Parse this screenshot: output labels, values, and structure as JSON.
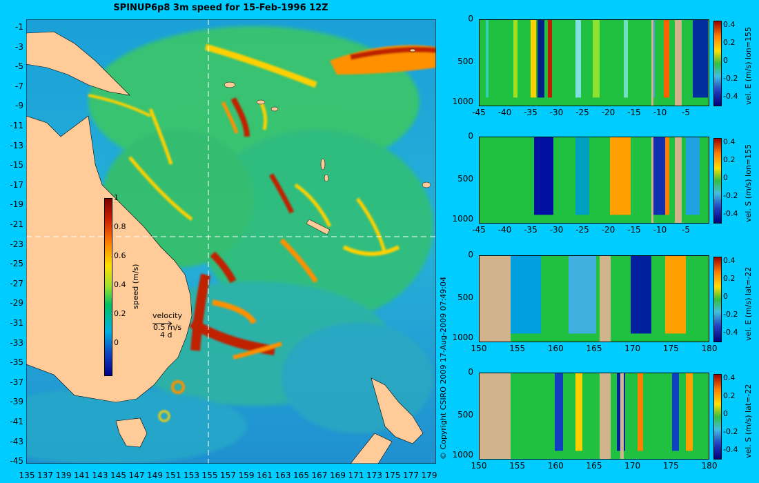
{
  "title": "SPINUP6p8 3m speed for 15-Feb-1996 12Z",
  "copyright": "© Copyright CSIRO 2009   17-Aug-2009 07:49:04",
  "map": {
    "lat_ticks": [
      "-1",
      "-3",
      "-5",
      "-7",
      "-9",
      "-11",
      "-13",
      "-15",
      "-17",
      "-19",
      "-21",
      "-23",
      "-25",
      "-27",
      "-29",
      "-31",
      "-33",
      "-35",
      "-37",
      "-39",
      "-41",
      "-43",
      "-45"
    ],
    "lon_ticks": [
      "135",
      "137",
      "139",
      "141",
      "143",
      "145",
      "147",
      "149",
      "151",
      "153",
      "155",
      "157",
      "159",
      "161",
      "163",
      "165",
      "167",
      "169",
      "171",
      "173",
      "175",
      "177",
      "179"
    ],
    "colorbar": {
      "label": "speed (m/s)",
      "ticks": [
        "1",
        "0.8",
        "0.6",
        "0.4",
        "0.2",
        "0"
      ]
    },
    "velocity_key": {
      "title": "velocity",
      "speed": "0.5 m/s",
      "duration": "4 d"
    },
    "crosshair": {
      "lon": 155,
      "lat": -22
    }
  },
  "panels": [
    {
      "label": "vel. E (m/s) lon=155",
      "x_ticks": [
        "-45",
        "-40",
        "-35",
        "-30",
        "-25",
        "-20",
        "-15",
        "-10",
        "-5"
      ],
      "y_ticks": [
        "0",
        "500",
        "1000"
      ],
      "cb_ticks": [
        "0.4",
        "0.2",
        "0",
        "-0.2",
        "-0.4"
      ]
    },
    {
      "label": "vel. S (m/s) lon=155",
      "x_ticks": [
        "-45",
        "-40",
        "-35",
        "-30",
        "-25",
        "-20",
        "-15",
        "-10",
        "-5"
      ],
      "y_ticks": [
        "0",
        "500",
        "1000"
      ],
      "cb_ticks": [
        "0.4",
        "0.2",
        "0",
        "-0.2",
        "-0.4"
      ]
    },
    {
      "label": "vel. E (m/s) lat=-22",
      "x_ticks": [
        "150",
        "155",
        "160",
        "165",
        "170",
        "175",
        "180"
      ],
      "y_ticks": [
        "0",
        "500",
        "1000"
      ],
      "cb_ticks": [
        "0.4",
        "0.2",
        "0",
        "-0.2",
        "-0.4"
      ]
    },
    {
      "label": "vel. S (m/s) lat=-22",
      "x_ticks": [
        "150",
        "155",
        "160",
        "165",
        "170",
        "175",
        "180"
      ],
      "y_ticks": [
        "0",
        "500",
        "1000"
      ],
      "cb_ticks": [
        "0.4",
        "0.2",
        "0",
        "-0.2",
        "-0.4"
      ]
    }
  ],
  "colors": {
    "background": "#00ccff",
    "land": "#ffcc99",
    "section_land": "#d2b48c",
    "ocean_base": "#2aa8e0"
  }
}
